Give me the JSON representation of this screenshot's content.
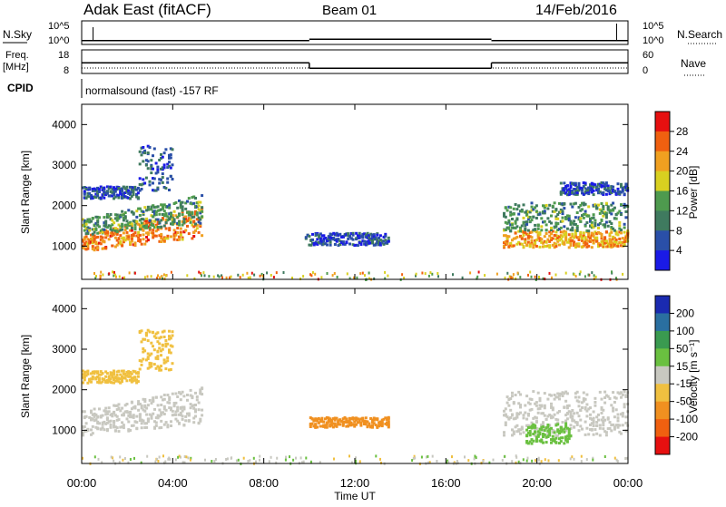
{
  "header": {
    "radar": "Adak East (fitACF)",
    "beam": "Beam 01",
    "date": "14/Feb/2016"
  },
  "noise_panel": {
    "left_label": "N.Sky",
    "right_label": "N.Search",
    "y_ticks": [
      "10^5",
      "10^0"
    ]
  },
  "freq_panel": {
    "left_label_line1": "Freq.",
    "left_label_line2": "[MHz]",
    "left_ticks": [
      "18",
      "8"
    ],
    "right_label": "Nave",
    "right_ticks": [
      "60",
      "0"
    ]
  },
  "cpid": {
    "label": "CPID",
    "text": "normalsound (fast) -157 RF"
  },
  "power_panel": {
    "ylabel": "Slant Range [km]",
    "y_ticks": [
      "1000",
      "2000",
      "3000",
      "4000"
    ],
    "colorbar_label": "Power [dB]",
    "colorbar_ticks": [
      "4",
      "8",
      "12",
      "16",
      "20",
      "24",
      "28"
    ],
    "colors": [
      "#1a1ae6",
      "#2a4fa8",
      "#3f7a5f",
      "#4e9a4e",
      "#d9d020",
      "#f0a020",
      "#f06010",
      "#e61010"
    ]
  },
  "velocity_panel": {
    "ylabel": "Slant Range [km]",
    "y_ticks": [
      "1000",
      "2000",
      "3000",
      "4000"
    ],
    "colorbar_label": "Velocity [m s⁻¹]",
    "colorbar_ticks": [
      "200",
      "100",
      "50",
      "15",
      "-15",
      "-50",
      "-100",
      "-200"
    ],
    "colors": [
      "#1a2ab0",
      "#2a6fa0",
      "#3a9a50",
      "#6ac040",
      "#c8c8c0",
      "#f0c040",
      "#f09020",
      "#f06010",
      "#e61010"
    ]
  },
  "x_axis": {
    "label": "Time UT",
    "ticks": [
      "00:00",
      "04:00",
      "08:00",
      "12:00",
      "16:00",
      "20:00",
      "00:00"
    ]
  },
  "chart_data": {
    "type": "heatmap",
    "x_range_hours": [
      0,
      24
    ],
    "y_range_km": [
      180,
      4500
    ],
    "freq_series": {
      "name": "Freq.",
      "segments": [
        {
          "start_h": 0,
          "end_h": 10,
          "mhz": 12.5
        },
        {
          "start_h": 10,
          "end_h": 18,
          "mhz": 10.2
        },
        {
          "start_h": 18,
          "end_h": 24,
          "mhz": 12.5
        }
      ]
    },
    "noise_series": {
      "name": "N.Sky",
      "segments": [
        {
          "start_h": 0,
          "end_h": 10,
          "level": 0.15
        },
        {
          "start_h": 10,
          "end_h": 18,
          "level": 0.35
        },
        {
          "start_h": 18,
          "end_h": 24,
          "level": 0.15
        }
      ]
    },
    "power_regions": [
      {
        "t0": 0.0,
        "t1": 5.3,
        "r0": 900,
        "r1": 1300,
        "r1_end": 2000,
        "value": 24
      },
      {
        "t0": 0.0,
        "t1": 5.3,
        "r0": 1300,
        "r1": 1700,
        "r1_end": 2300,
        "value": 12
      },
      {
        "t0": 0.0,
        "t1": 2.5,
        "r0": 2200,
        "r1": 2500,
        "value": 6
      },
      {
        "t0": 2.5,
        "t1": 4.0,
        "r0": 2400,
        "r1": 3500,
        "value": 7
      },
      {
        "t0": 9.8,
        "t1": 13.5,
        "r0": 1050,
        "r1": 1350,
        "value": 6
      },
      {
        "t0": 18.5,
        "t1": 24.0,
        "r0": 1000,
        "r1": 1400,
        "value": 22
      },
      {
        "t0": 18.5,
        "t1": 24.0,
        "r0": 1400,
        "r1": 2100,
        "value": 12
      },
      {
        "t0": 21.0,
        "t1": 24.0,
        "r0": 2300,
        "r1": 2600,
        "value": 6
      }
    ],
    "velocity_regions": [
      {
        "t0": 0.0,
        "t1": 5.3,
        "r0": 900,
        "r1": 1500,
        "r1_end": 2100,
        "value": 0
      },
      {
        "t0": 0.0,
        "t1": 2.5,
        "r0": 2200,
        "r1": 2500,
        "value": -30
      },
      {
        "t0": 2.5,
        "t1": 4.0,
        "r0": 2500,
        "r1": 3500,
        "value": -30
      },
      {
        "t0": 10.0,
        "t1": 13.5,
        "r0": 1100,
        "r1": 1350,
        "value": -60
      },
      {
        "t0": 18.5,
        "t1": 24.0,
        "r0": 900,
        "r1": 2000,
        "value": 0
      },
      {
        "t0": 19.5,
        "t1": 21.5,
        "r0": 700,
        "r1": 1200,
        "value": 30
      }
    ]
  }
}
